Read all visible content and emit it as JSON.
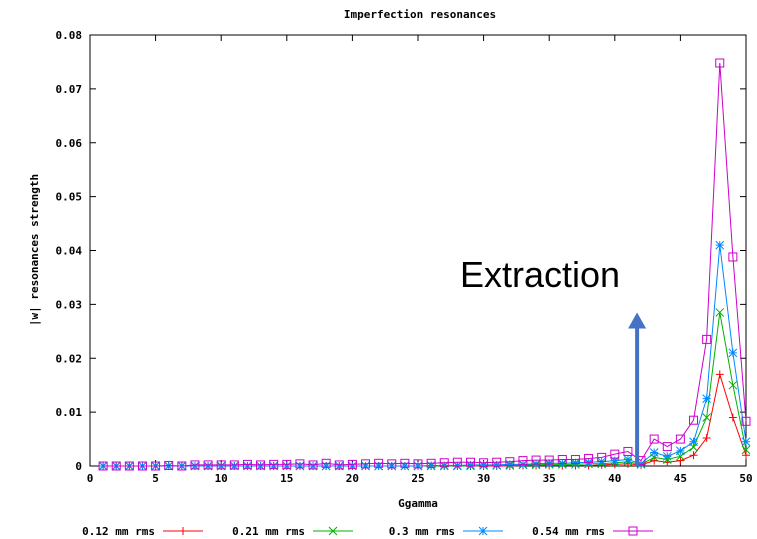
{
  "chart_data": {
    "type": "line",
    "title": "Imperfection resonances",
    "xlabel": "Ggamma",
    "ylabel": "|w| resonances strength",
    "xlim": [
      0,
      50
    ],
    "ylim": [
      0,
      0.08
    ],
    "xticks": [
      0,
      5,
      10,
      15,
      20,
      25,
      30,
      35,
      40,
      45,
      50
    ],
    "yticks": [
      0,
      0.01,
      0.02,
      0.03,
      0.04,
      0.05,
      0.06,
      0.07,
      0.08
    ],
    "ytick_labels": [
      "0",
      "0.01",
      "0.02",
      "0.03",
      "0.04",
      "0.05",
      "0.06",
      "0.07",
      "0.08"
    ],
    "grid": false,
    "legend_position": "bottom",
    "annotation": {
      "text": "Extraction",
      "x": 41.7,
      "arrow_from_y": 0.0,
      "arrow_to_y": 0.0285
    },
    "x": [
      1,
      2,
      3,
      4,
      5,
      6,
      7,
      8,
      9,
      10,
      11,
      12,
      13,
      14,
      15,
      16,
      17,
      18,
      19,
      20,
      21,
      22,
      23,
      24,
      25,
      26,
      27,
      28,
      29,
      30,
      31,
      32,
      33,
      34,
      35,
      36,
      37,
      38,
      39,
      40,
      41,
      42,
      43,
      44,
      45,
      46,
      47,
      48,
      49,
      50
    ],
    "series": [
      {
        "name": "0.12 mm rms",
        "color": "#ff0000",
        "marker": "plus",
        "values": [
          0,
          0,
          0,
          0,
          0,
          0,
          0,
          0,
          0,
          0,
          0,
          0,
          0,
          0,
          0,
          0,
          0,
          0,
          0,
          0,
          0,
          0,
          0,
          0,
          0,
          0,
          0,
          0,
          0,
          0,
          0,
          0,
          0.0001,
          0.0001,
          0.0001,
          0.0001,
          0.0001,
          0.0001,
          0.0002,
          0.0003,
          0.0004,
          0.0002,
          0.001,
          0.0007,
          0.001,
          0.002,
          0.0052,
          0.017,
          0.009,
          0.002
        ]
      },
      {
        "name": "0.21 mm rms",
        "color": "#00b000",
        "marker": "cross",
        "values": [
          0,
          0,
          0,
          0,
          0,
          0,
          0,
          0,
          0,
          0,
          0,
          0,
          0,
          0,
          0,
          0,
          0,
          0,
          0,
          0,
          0,
          0,
          0,
          0,
          0,
          0,
          0,
          0,
          0,
          0.0001,
          0.0001,
          0.0001,
          0.0002,
          0.0002,
          0.0003,
          0.0003,
          0.0003,
          0.0004,
          0.0004,
          0.0006,
          0.0008,
          0.0003,
          0.0016,
          0.0012,
          0.0018,
          0.0035,
          0.009,
          0.0285,
          0.015,
          0.003
        ]
      },
      {
        "name": "0.3 mm rms",
        "color": "#0088ff",
        "marker": "star",
        "values": [
          0,
          0,
          0,
          0,
          0,
          0,
          0,
          0,
          0,
          0,
          0,
          0,
          0,
          0,
          0,
          0,
          0,
          0,
          0,
          0,
          0,
          0,
          0,
          0,
          0,
          0.0001,
          0.0001,
          0.0001,
          0.0002,
          0.0002,
          0.0002,
          0.0003,
          0.0003,
          0.0004,
          0.0005,
          0.0005,
          0.0006,
          0.0007,
          0.0008,
          0.001,
          0.0012,
          0.0004,
          0.0025,
          0.0018,
          0.0028,
          0.0045,
          0.0125,
          0.041,
          0.021,
          0.0045
        ]
      },
      {
        "name": "0.54 mm rms",
        "color": "#cc00cc",
        "marker": "square",
        "values": [
          0,
          0,
          0,
          0,
          0,
          0.0001,
          0,
          0.0002,
          0.0002,
          0.0002,
          0.0002,
          0.0003,
          0.0002,
          0.0003,
          0.0003,
          0.0004,
          0.0002,
          0.0005,
          0.0002,
          0.0003,
          0.0004,
          0.0005,
          0.0004,
          0.0005,
          0.0004,
          0.0005,
          0.0006,
          0.0007,
          0.0007,
          0.0006,
          0.0007,
          0.0008,
          0.001,
          0.0011,
          0.0011,
          0.0012,
          0.0012,
          0.0014,
          0.0016,
          0.0022,
          0.0027,
          0.001,
          0.005,
          0.0036,
          0.005,
          0.0085,
          0.0235,
          0.0748,
          0.0388,
          0.0083
        ]
      }
    ]
  }
}
